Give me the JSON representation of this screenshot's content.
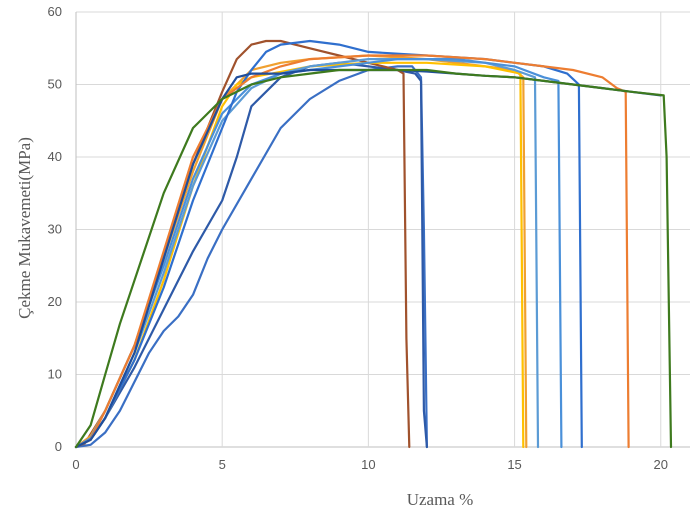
{
  "chart_data": {
    "type": "line",
    "title": "",
    "xlabel": "Uzama %",
    "ylabel": "Çekme Mukavemeti(MPa)",
    "xlim": [
      0,
      21
    ],
    "ylim": [
      0,
      60
    ],
    "grid": true,
    "legend": "none",
    "x_ticks": [
      "0",
      "5",
      "10",
      "15",
      "20"
    ],
    "y_ticks": [
      "0",
      "10",
      "20",
      "30",
      "40",
      "50",
      "60"
    ],
    "series": [
      {
        "color": "#3a6fc4",
        "points": [
          [
            0,
            0
          ],
          [
            0.5,
            0.3
          ],
          [
            1,
            2
          ],
          [
            1.5,
            5
          ],
          [
            2,
            9
          ],
          [
            2.5,
            13
          ],
          [
            3,
            16
          ],
          [
            3.5,
            18
          ],
          [
            4,
            21
          ],
          [
            4.5,
            26
          ],
          [
            5,
            30
          ],
          [
            6,
            37
          ],
          [
            7,
            44
          ],
          [
            8,
            48
          ],
          [
            9,
            50.5
          ],
          [
            10,
            52
          ],
          [
            11,
            52.5
          ],
          [
            11.5,
            52.5
          ],
          [
            11.8,
            51
          ],
          [
            11.9,
            30
          ],
          [
            12,
            0
          ]
        ]
      },
      {
        "color": "#2e5aa8",
        "points": [
          [
            0,
            0
          ],
          [
            0.5,
            1
          ],
          [
            1,
            4
          ],
          [
            2,
            11
          ],
          [
            3,
            19
          ],
          [
            4,
            27
          ],
          [
            5,
            34
          ],
          [
            5.5,
            40
          ],
          [
            6,
            47
          ],
          [
            7,
            51
          ],
          [
            8,
            52.5
          ],
          [
            9,
            53
          ],
          [
            10,
            52.5
          ],
          [
            11,
            52
          ],
          [
            11.6,
            51.5
          ],
          [
            11.8,
            50.5
          ],
          [
            11.9,
            5
          ],
          [
            12,
            0
          ]
        ]
      },
      {
        "color": "#a0522d",
        "points": [
          [
            0,
            0
          ],
          [
            0.3,
            0.5
          ],
          [
            1,
            5
          ],
          [
            2,
            14
          ],
          [
            3,
            26
          ],
          [
            4,
            39
          ],
          [
            5,
            49
          ],
          [
            5.5,
            53.5
          ],
          [
            6,
            55.5
          ],
          [
            6.5,
            56
          ],
          [
            7,
            56
          ],
          [
            8,
            55
          ],
          [
            9,
            54
          ],
          [
            10,
            53
          ],
          [
            11,
            52
          ],
          [
            11.2,
            51.5
          ],
          [
            11.3,
            15
          ],
          [
            11.4,
            0
          ]
        ]
      },
      {
        "color": "#f0a030",
        "points": [
          [
            0,
            0
          ],
          [
            0.5,
            1.5
          ],
          [
            1,
            5
          ],
          [
            2,
            14
          ],
          [
            3,
            26
          ],
          [
            4,
            38
          ],
          [
            5,
            48
          ],
          [
            6,
            52
          ],
          [
            7,
            53
          ],
          [
            8,
            53.5
          ],
          [
            10,
            54
          ],
          [
            12,
            53.5
          ],
          [
            14,
            52.5
          ],
          [
            15,
            52
          ],
          [
            15.3,
            51
          ],
          [
            15.4,
            0
          ]
        ]
      },
      {
        "color": "#ffc000",
        "points": [
          [
            0,
            0
          ],
          [
            0.5,
            1
          ],
          [
            1,
            4
          ],
          [
            2,
            12
          ],
          [
            3,
            23
          ],
          [
            4,
            36
          ],
          [
            5,
            47
          ],
          [
            5.5,
            50
          ],
          [
            6,
            51
          ],
          [
            8,
            52.5
          ],
          [
            10,
            53
          ],
          [
            12,
            53
          ],
          [
            14,
            52.5
          ],
          [
            15.2,
            51.5
          ],
          [
            15.3,
            0
          ]
        ]
      },
      {
        "color": "#5b9bd5",
        "points": [
          [
            0,
            0
          ],
          [
            0.5,
            1
          ],
          [
            1,
            4
          ],
          [
            2,
            13
          ],
          [
            3,
            24
          ],
          [
            4,
            36
          ],
          [
            5,
            45
          ],
          [
            6,
            49.5
          ],
          [
            7,
            51.5
          ],
          [
            8,
            52.5
          ],
          [
            10,
            53.5
          ],
          [
            12,
            53.5
          ],
          [
            14,
            53
          ],
          [
            15,
            52
          ],
          [
            15.7,
            51
          ],
          [
            15.8,
            0
          ]
        ]
      },
      {
        "color": "#4a90d9",
        "points": [
          [
            0,
            0
          ],
          [
            0.5,
            1.2
          ],
          [
            1,
            5
          ],
          [
            2,
            14
          ],
          [
            3,
            25
          ],
          [
            4,
            37
          ],
          [
            5,
            46
          ],
          [
            6,
            50
          ],
          [
            7,
            51.5
          ],
          [
            9,
            52.5
          ],
          [
            11,
            53.5
          ],
          [
            13,
            53.5
          ],
          [
            15,
            52.5
          ],
          [
            16,
            51
          ],
          [
            16.5,
            50.5
          ],
          [
            16.6,
            0
          ]
        ]
      },
      {
        "color": "#2f6fce",
        "points": [
          [
            0,
            0
          ],
          [
            0.5,
            1
          ],
          [
            1,
            4
          ],
          [
            2,
            12
          ],
          [
            3,
            22
          ],
          [
            4,
            34
          ],
          [
            5,
            44
          ],
          [
            5.5,
            49
          ],
          [
            6,
            52
          ],
          [
            6.5,
            54.5
          ],
          [
            7,
            55.5
          ],
          [
            8,
            56
          ],
          [
            9,
            55.5
          ],
          [
            10,
            54.5
          ],
          [
            12,
            54
          ],
          [
            14,
            53.5
          ],
          [
            15,
            53
          ],
          [
            16,
            52.5
          ],
          [
            16.8,
            51.5
          ],
          [
            17.2,
            50
          ],
          [
            17.3,
            0
          ]
        ]
      },
      {
        "color": "#ed7d31",
        "points": [
          [
            0,
            0
          ],
          [
            0.5,
            1
          ],
          [
            1,
            5
          ],
          [
            2,
            14
          ],
          [
            3,
            27
          ],
          [
            4,
            40
          ],
          [
            5,
            48
          ],
          [
            6,
            51
          ],
          [
            7,
            52.5
          ],
          [
            8,
            53.5
          ],
          [
            10,
            54
          ],
          [
            12,
            54
          ],
          [
            14,
            53.5
          ],
          [
            16,
            52.5
          ],
          [
            17,
            52
          ],
          [
            18,
            51
          ],
          [
            18.5,
            49.5
          ],
          [
            18.8,
            49
          ],
          [
            18.9,
            0
          ]
        ]
      },
      {
        "color": "#1f4e9c",
        "points": [
          [
            0,
            0
          ],
          [
            0.5,
            1
          ],
          [
            1,
            4
          ],
          [
            2,
            13
          ],
          [
            3,
            26
          ],
          [
            4,
            39
          ],
          [
            5,
            48
          ],
          [
            5.5,
            51
          ],
          [
            6,
            51.5
          ],
          [
            7,
            51.5
          ],
          [
            8,
            52
          ],
          [
            9,
            52
          ],
          [
            10,
            52
          ],
          [
            11,
            52
          ],
          [
            12,
            51.8
          ],
          [
            13,
            51.5
          ],
          [
            14,
            51.2
          ],
          [
            15,
            51
          ],
          [
            16,
            50.5
          ],
          [
            17,
            50
          ],
          [
            18,
            49.5
          ],
          [
            19,
            49
          ],
          [
            20,
            48.5
          ]
        ]
      },
      {
        "color": "#3e7a1e",
        "points": [
          [
            0,
            0
          ],
          [
            0.5,
            3
          ],
          [
            1,
            10
          ],
          [
            1.5,
            17
          ],
          [
            2,
            23
          ],
          [
            3,
            35
          ],
          [
            4,
            44
          ],
          [
            5,
            48
          ],
          [
            6,
            50
          ],
          [
            7,
            51
          ],
          [
            8,
            51.5
          ],
          [
            9,
            52
          ],
          [
            10,
            52
          ],
          [
            11,
            52
          ],
          [
            12,
            52
          ],
          [
            13,
            51.5
          ],
          [
            14,
            51.2
          ],
          [
            15,
            51
          ],
          [
            16,
            50.5
          ],
          [
            17,
            50
          ],
          [
            18,
            49.5
          ],
          [
            19,
            49
          ],
          [
            20.1,
            48.5
          ],
          [
            20.2,
            40
          ],
          [
            20.35,
            0
          ]
        ]
      }
    ]
  }
}
